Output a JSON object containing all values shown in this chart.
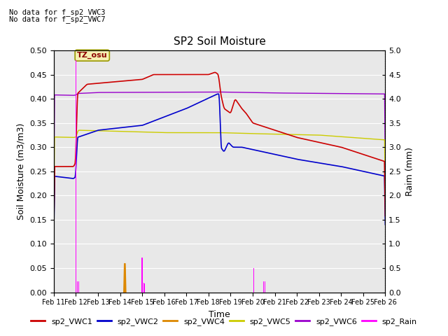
{
  "title": "SP2 Soil Moisture",
  "xlabel": "Time",
  "ylabel_left": "Soil Moisture (m3/m3)",
  "ylabel_right": "Raim (mm)",
  "no_data_text": [
    "No data for f_sp2_VWC3",
    "No data for f_sp2_VWC7"
  ],
  "tz_label": "TZ_osu",
  "xlim": [
    0,
    15
  ],
  "ylim_left": [
    0.0,
    0.5
  ],
  "ylim_right": [
    0.0,
    5.0
  ],
  "yticks_left": [
    0.0,
    0.05,
    0.1,
    0.15,
    0.2,
    0.25,
    0.3,
    0.35,
    0.4,
    0.45,
    0.5
  ],
  "yticks_right": [
    0.0,
    0.5,
    1.0,
    1.5,
    2.0,
    2.5,
    3.0,
    3.5,
    4.0,
    4.5,
    5.0
  ],
  "xtick_labels": [
    "Feb 11",
    "Feb 12",
    "Feb 13",
    "Feb 14",
    "Feb 15",
    "Feb 16",
    "Feb 17",
    "Feb 18",
    "Feb 19",
    "Feb 20",
    "Feb 21",
    "Feb 22",
    "Feb 23",
    "Feb 24",
    "Feb 25",
    "Feb 26"
  ],
  "bg_color": "#e8e8e8",
  "vwc1_color": "#cc0000",
  "vwc2_color": "#0000cc",
  "vwc4_color": "#dd8800",
  "vwc5_color": "#cccc00",
  "vwc6_color": "#9900cc",
  "rain_color": "#ff00ff",
  "grid_color": "#ffffff"
}
